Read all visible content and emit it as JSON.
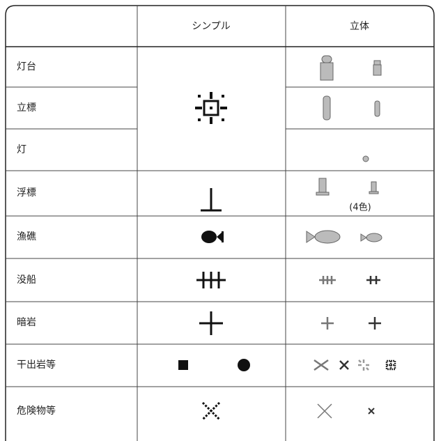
{
  "table": {
    "header": [
      "シンプル",
      "立体"
    ],
    "rows": [
      "灯台",
      "立標",
      "灯",
      "浮標",
      "漁礁",
      "没船",
      "暗岩",
      "干出岩等",
      "危険物等"
    ],
    "note": "(4色)"
  }
}
